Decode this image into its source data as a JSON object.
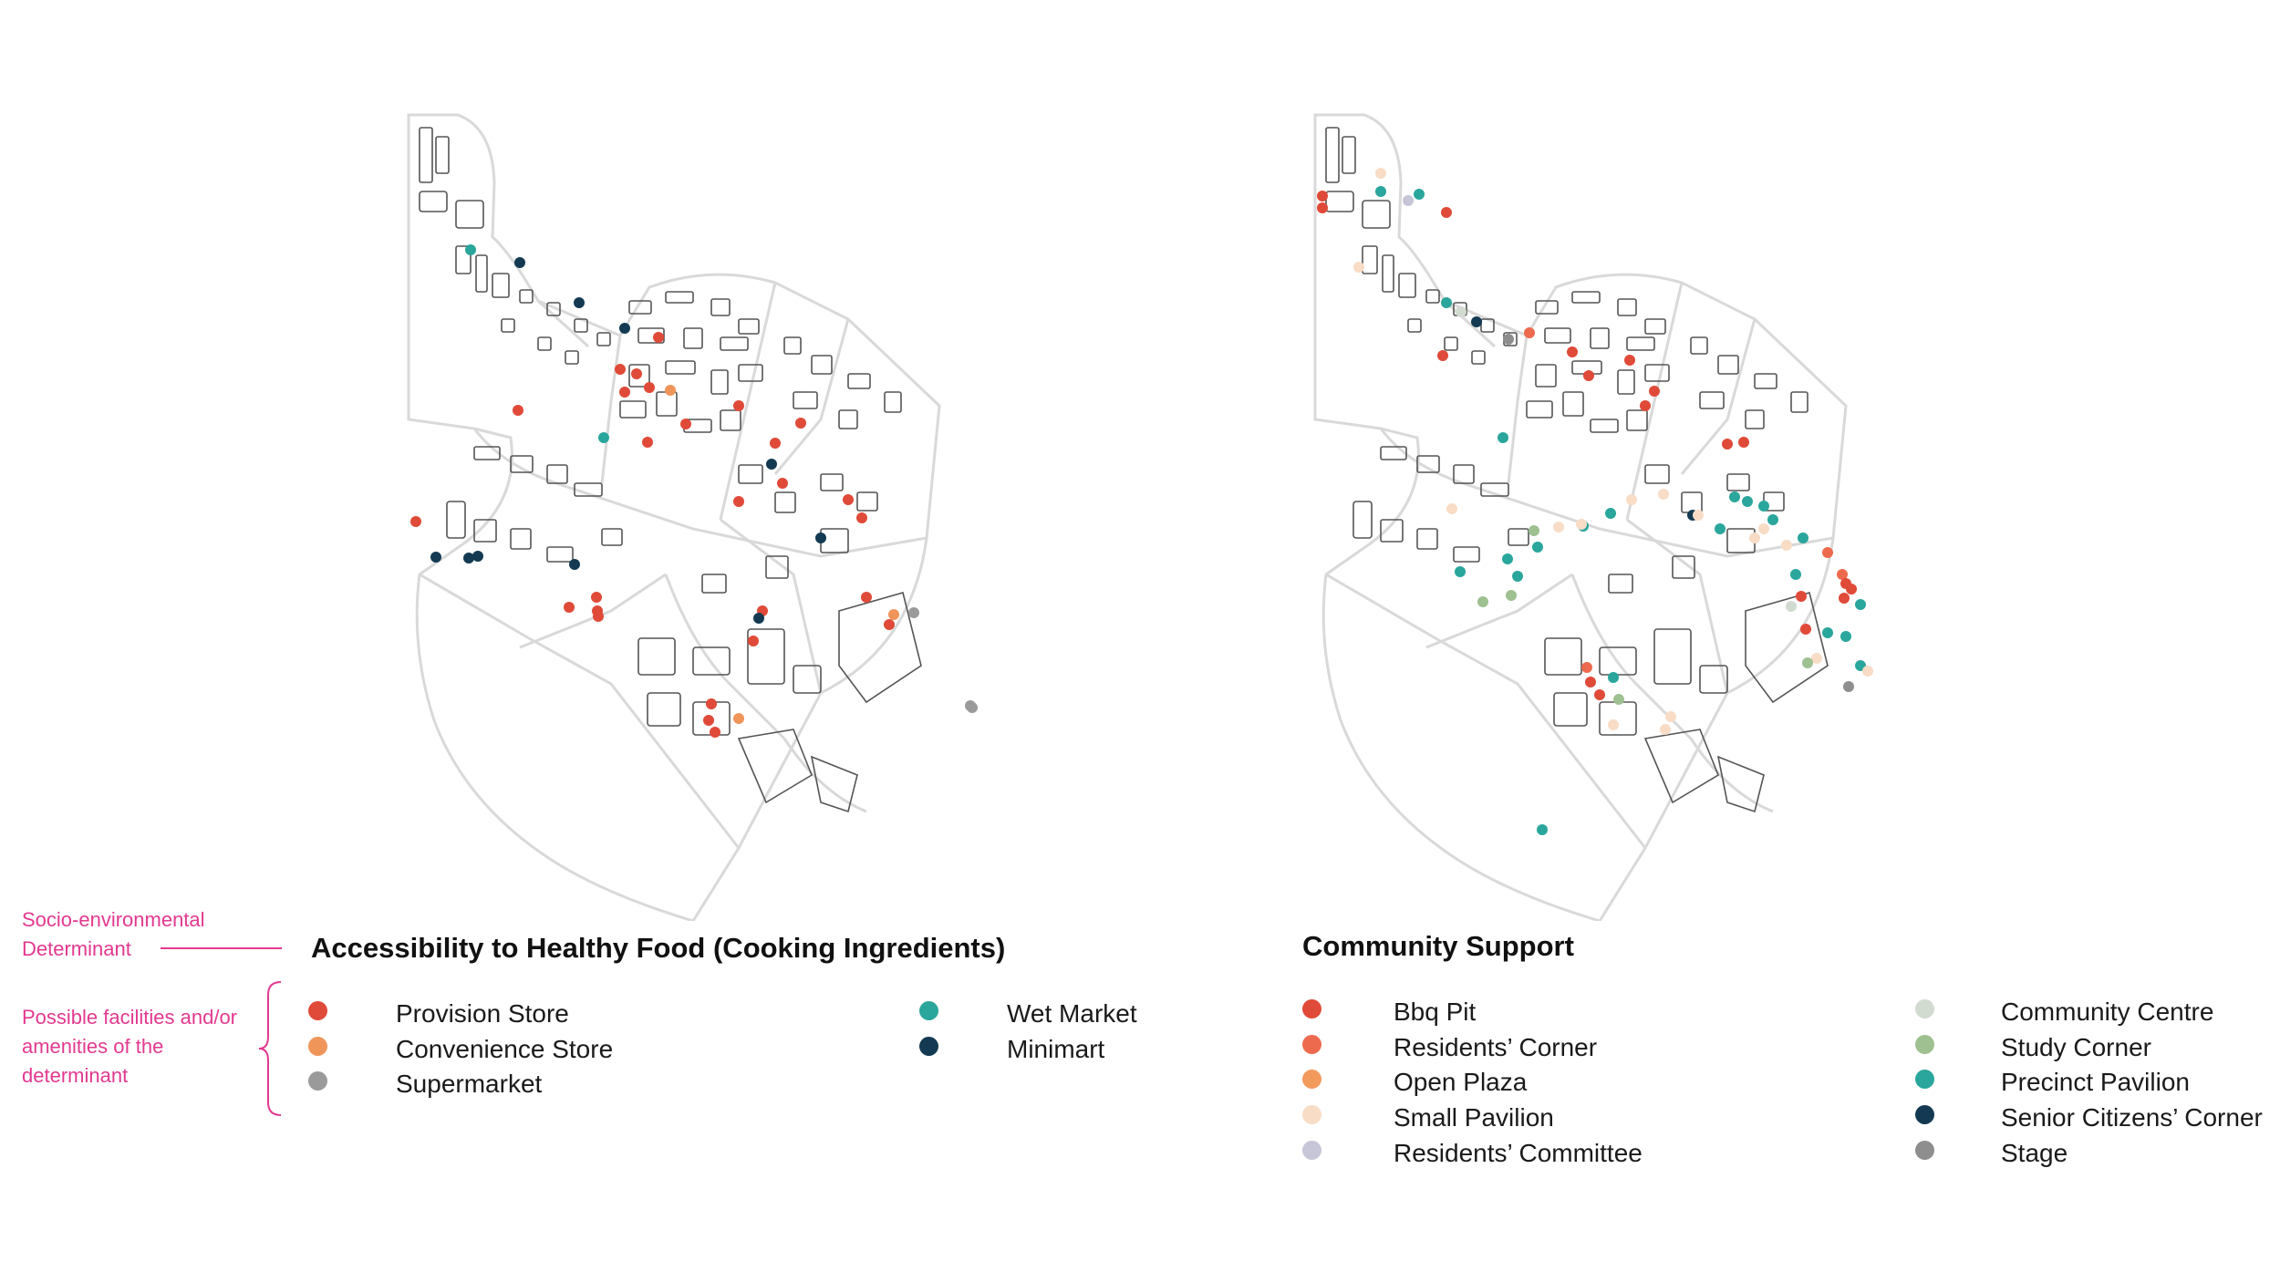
{
  "annotations": {
    "determinant": "Socio-environmental Determinant",
    "possible": "Possible facilities and/or amenities of the determinant"
  },
  "colors": {
    "annotation": "#e2398f",
    "road": "#d9d9d9",
    "building_outline": "#555555"
  },
  "left_legend": {
    "title": "Accessibility to Healthy Food (Cooking Ingredients)",
    "items": [
      {
        "label": "Provision Store",
        "color": "#e04a38"
      },
      {
        "label": "Convenience Store",
        "color": "#f0955a"
      },
      {
        "label": "Supermarket",
        "color": "#9a9a9a"
      },
      {
        "label": "Wet Market",
        "color": "#2aa69c"
      },
      {
        "label": "Minimart",
        "color": "#133a52"
      }
    ]
  },
  "right_legend": {
    "title": "Community Support",
    "items": [
      {
        "label": "Bbq Pit",
        "color": "#e04a38"
      },
      {
        "label": "Residents’ Corner",
        "color": "#ee6a4e"
      },
      {
        "label": "Open Plaza",
        "color": "#f29a5c"
      },
      {
        "label": "Small Pavilion",
        "color": "#f8dcc6"
      },
      {
        "label": "Residents’ Committee",
        "color": "#c6c6d8"
      },
      {
        "label": "Community Centre",
        "color": "#d2dbd0"
      },
      {
        "label": "Study Corner",
        "color": "#9fc091"
      },
      {
        "label": "Precinct Pavilion",
        "color": "#2aa69c"
      },
      {
        "label": "Senior Citizens’ Corner",
        "color": "#133a52"
      },
      {
        "label": "Stage",
        "color": "#8e8e8e"
      }
    ]
  }
}
